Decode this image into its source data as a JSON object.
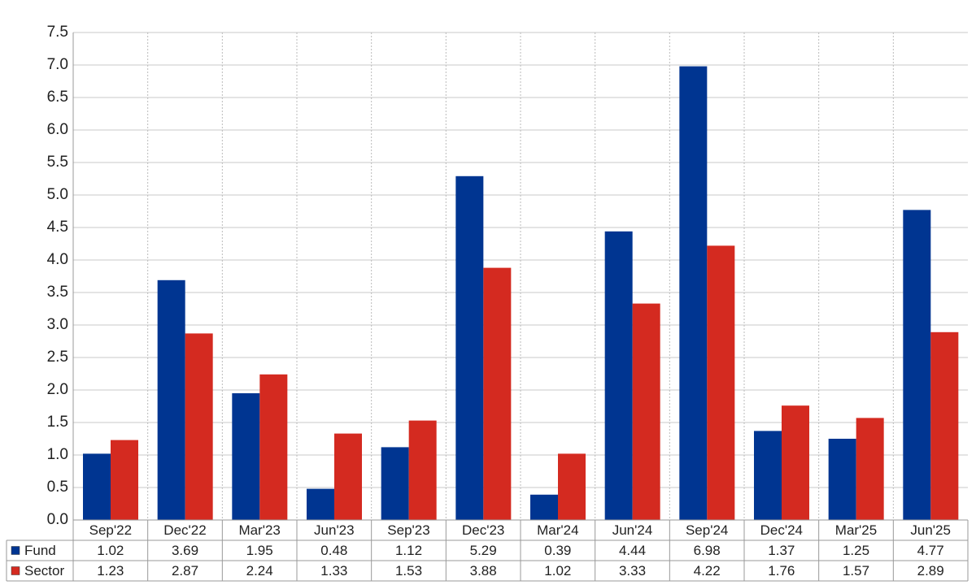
{
  "chart_data": {
    "type": "bar",
    "categories": [
      "Sep'22",
      "Dec'22",
      "Mar'23",
      "Jun'23",
      "Sep'23",
      "Dec'23",
      "Mar'24",
      "Jun'24",
      "Sep'24",
      "Dec'24",
      "Mar'25",
      "Jun'25"
    ],
    "series": [
      {
        "name": "Fund",
        "color": "#003591",
        "values": [
          1.02,
          3.69,
          1.95,
          0.48,
          1.12,
          5.29,
          0.39,
          4.44,
          6.98,
          1.37,
          1.25,
          4.77
        ]
      },
      {
        "name": "Sector",
        "color": "#d42a20",
        "values": [
          1.23,
          2.87,
          2.24,
          1.33,
          1.53,
          3.88,
          1.02,
          3.33,
          4.22,
          1.76,
          1.57,
          2.89
        ]
      }
    ],
    "ylim": [
      0,
      7.5
    ],
    "yticks": [
      {
        "value": 0,
        "label": "0.0"
      },
      0.5,
      {
        "value": 1,
        "label": "1.0"
      },
      1.5,
      {
        "value": 2,
        "label": "2.0"
      },
      2.5,
      {
        "value": 3,
        "label": "3.0"
      },
      3.5,
      {
        "value": 4,
        "label": "4.0"
      },
      4.5,
      {
        "value": 5,
        "label": "5.0"
      },
      5.5,
      {
        "value": 6,
        "label": "6.0"
      },
      6.5,
      {
        "value": 7,
        "label": "7.0"
      },
      7.5
    ],
    "grid": true
  }
}
